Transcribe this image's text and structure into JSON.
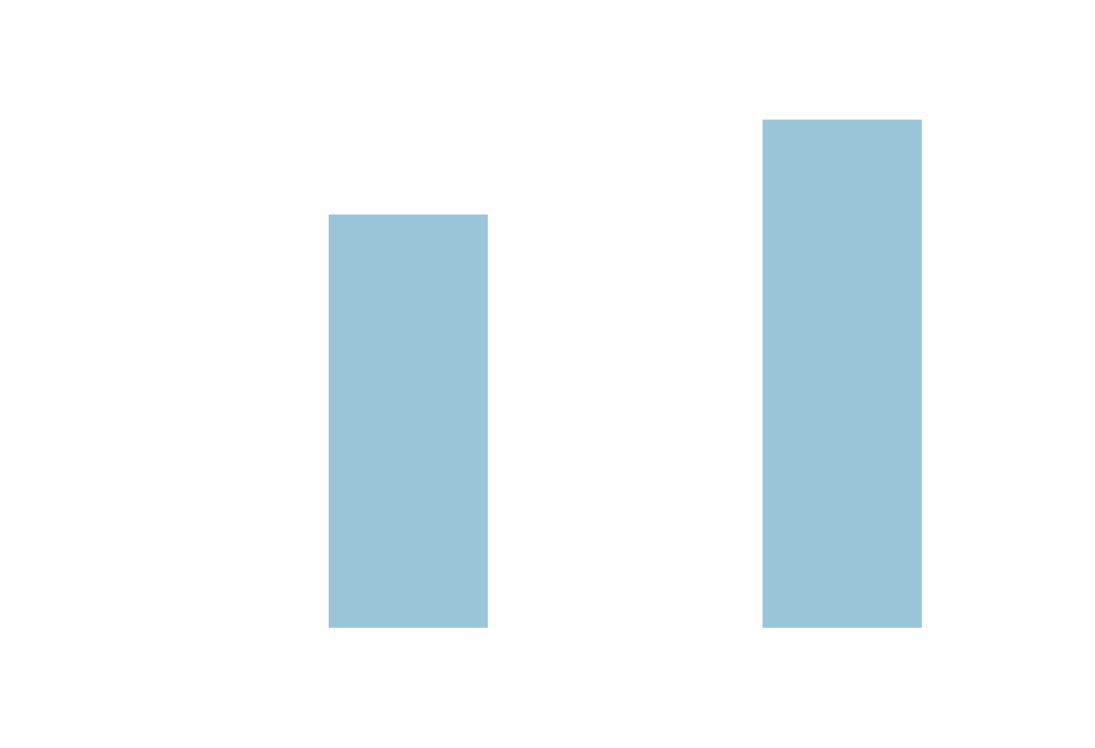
{
  "chart_data": {
    "type": "bar",
    "categories": [
      "",
      ""
    ],
    "values": [
      5.4,
      6.64
    ],
    "ylim": [
      0,
      7.8
    ],
    "grid": false,
    "bar_color": "#9ac5d8",
    "background": "#fefefe"
  }
}
